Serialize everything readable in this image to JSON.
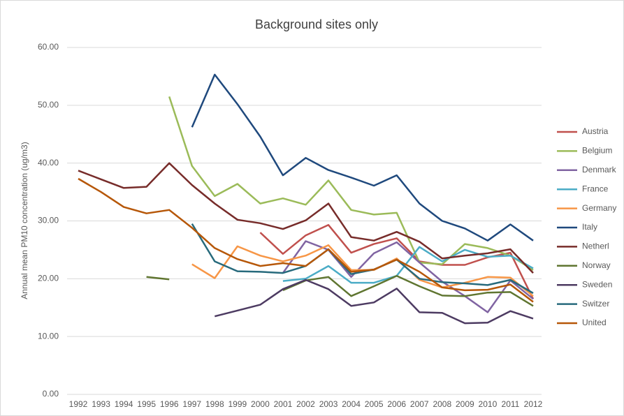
{
  "chart_data": {
    "type": "line",
    "title": "Background sites only",
    "y_label": "Annual mean PM10 concentration (ug/m3)",
    "categories": [
      "1992",
      "1993",
      "1994",
      "1995",
      "1996",
      "1997",
      "1998",
      "1999",
      "2000",
      "2001",
      "2002",
      "2003",
      "2004",
      "2005",
      "2006",
      "2007",
      "2008",
      "2009",
      "2010",
      "2011",
      "2012"
    ],
    "ylim": [
      0,
      60
    ],
    "yticks": [
      {
        "value": 0,
        "label": "0.00"
      },
      {
        "value": 10,
        "label": "10.00"
      },
      {
        "value": 20,
        "label": "20.00"
      },
      {
        "value": 30,
        "label": "30.00"
      },
      {
        "value": 40,
        "label": "40.00"
      },
      {
        "value": 50,
        "label": "50.00"
      },
      {
        "value": 60,
        "label": "60.00"
      }
    ],
    "grid": true,
    "legend": "right",
    "series": [
      {
        "name": "Austria",
        "color": "#c0504d",
        "values": [
          null,
          null,
          null,
          null,
          null,
          null,
          null,
          null,
          28,
          24.3,
          27.5,
          29.3,
          24.5,
          26,
          27,
          23,
          22.4,
          22.4,
          23.7,
          24.5,
          16.5
        ]
      },
      {
        "name": "Belgium",
        "color": "#9bbb59",
        "values": [
          null,
          null,
          null,
          null,
          51.5,
          39.5,
          34.3,
          36.4,
          33,
          33.9,
          32.8,
          37,
          31.9,
          31.1,
          31.4,
          22.8,
          22.5,
          26,
          25.3,
          24,
          21.5
        ]
      },
      {
        "name": "Denmark",
        "color": "#8064a2",
        "values": [
          null,
          null,
          null,
          null,
          null,
          null,
          null,
          null,
          null,
          21,
          26.5,
          25,
          20.3,
          24.4,
          26.3,
          22.8,
          19.5,
          17,
          14.2,
          19.7,
          16.5
        ]
      },
      {
        "name": "France",
        "color": "#4bacc6",
        "values": [
          null,
          null,
          null,
          null,
          null,
          null,
          null,
          null,
          null,
          19.6,
          20,
          22.2,
          19.3,
          19.3,
          20.5,
          25.5,
          23,
          25,
          23.8,
          24,
          21.8
        ]
      },
      {
        "name": "Germany",
        "color": "#f79646",
        "values": [
          null,
          null,
          null,
          null,
          null,
          22.5,
          20.1,
          25.6,
          24,
          23,
          24,
          25.8,
          21.5,
          21.5,
          23.5,
          19.8,
          18.5,
          19.3,
          20.3,
          20.2,
          17
        ]
      },
      {
        "name": "Italy",
        "color": "#1f497d",
        "values": [
          null,
          null,
          null,
          null,
          null,
          46.2,
          55.3,
          50.2,
          44.6,
          37.9,
          40.9,
          38.8,
          37.5,
          36.1,
          37.9,
          33,
          30,
          28.7,
          26.6,
          29.4,
          26.6
        ]
      },
      {
        "name": "Netherl",
        "color": "#772c2a",
        "values": [
          38.7,
          37.2,
          35.7,
          35.9,
          40,
          36.2,
          33,
          30.2,
          29.6,
          28.6,
          30.1,
          33,
          27.2,
          26.6,
          28.1,
          26.4,
          23.5,
          24,
          24.4,
          25.1,
          21
        ]
      },
      {
        "name": "Norway",
        "color": "#5f7530",
        "values": [
          null,
          null,
          null,
          20.3,
          19.9,
          null,
          null,
          null,
          null,
          18,
          19.7,
          20.3,
          17,
          18.7,
          20.5,
          18.7,
          17.1,
          17,
          17.6,
          17.7,
          15.3
        ]
      },
      {
        "name": "Sweden",
        "color": "#4d3b62",
        "values": [
          null,
          null,
          null,
          null,
          null,
          null,
          13.5,
          14.5,
          15.5,
          18.2,
          19.8,
          18.2,
          15.3,
          15.9,
          18.3,
          14.2,
          14.1,
          12.3,
          12.4,
          14.4,
          13.1
        ]
      },
      {
        "name": "Switzer",
        "color": "#276a7c",
        "values": [
          null,
          null,
          null,
          null,
          null,
          29.5,
          23,
          21.3,
          21.2,
          21,
          22.2,
          25.1,
          20.8,
          21.6,
          23.3,
          20,
          19.4,
          19.2,
          18.9,
          19.8,
          17.5
        ]
      },
      {
        "name": "United",
        "color": "#b65708",
        "values": [
          37.3,
          35,
          32.4,
          31.3,
          31.9,
          28.8,
          25.3,
          23.4,
          22.2,
          22.7,
          22.2,
          25.1,
          21.2,
          21.6,
          23.3,
          21.2,
          18.5,
          18,
          18.1,
          19,
          16
        ]
      }
    ]
  }
}
